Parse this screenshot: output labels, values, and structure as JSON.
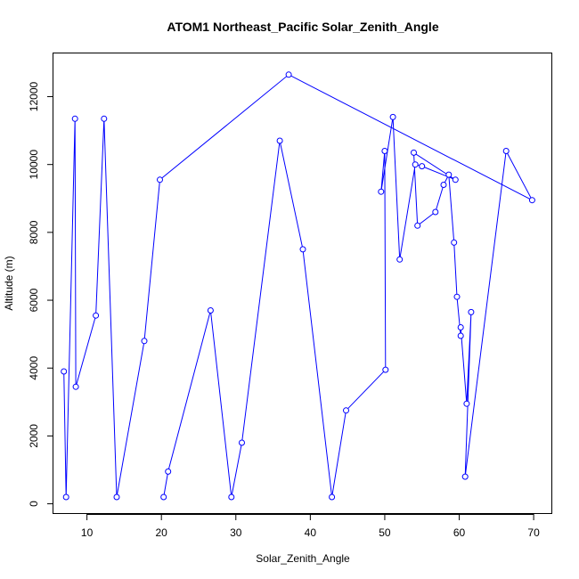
{
  "chart_data": {
    "type": "line",
    "title": "ATOM1 Northeast_Pacific Solar_Zenith_Angle",
    "xlabel": "Solar_Zenith_Angle",
    "ylabel": "Altitude (m)",
    "xlim": [
      5.5,
      72.5
    ],
    "ylim": [
      -300,
      13300
    ],
    "x_ticks": [
      10,
      20,
      30,
      40,
      50,
      60,
      70
    ],
    "y_ticks": [
      0,
      2000,
      4000,
      6000,
      8000,
      10000,
      12000
    ],
    "x_tick_labels": [
      "10",
      "20",
      "30",
      "40",
      "50",
      "60",
      "70"
    ],
    "y_tick_labels": [
      "0",
      "2000",
      "4000",
      "6000",
      "8000",
      "10000",
      "12000"
    ],
    "series_color": "#0000ff",
    "markers": "open-circle",
    "grid": false,
    "x": [
      6.9,
      7.2,
      8.4,
      8.5,
      11.2,
      12.3,
      14.0,
      17.7,
      19.8,
      37.1,
      69.8,
      66.3,
      60.8,
      61.6,
      61.0,
      60.2,
      60.2,
      59.7,
      59.3,
      58.6,
      57.9,
      56.8,
      54.4,
      53.9,
      59.5,
      55.0,
      54.1,
      52.0,
      51.1,
      49.5,
      50.0,
      50.1,
      44.8,
      42.9,
      39.0,
      35.9,
      30.8,
      29.4,
      26.6,
      20.9,
      20.3
    ],
    "y": [
      3900,
      200,
      11350,
      3450,
      5550,
      11350,
      200,
      4800,
      9550,
      12650,
      8950,
      10400,
      800,
      5650,
      2950,
      5200,
      4950,
      6100,
      7700,
      9700,
      9400,
      8600,
      8200,
      10350,
      9550,
      9950,
      10000,
      7200,
      11400,
      9200,
      10400,
      3950,
      2750,
      200,
      7500,
      10700,
      1800,
      200,
      5700,
      950,
      200
    ]
  }
}
